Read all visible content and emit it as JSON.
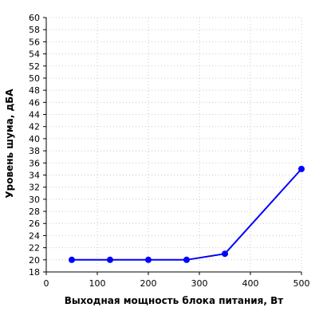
{
  "chart_data": {
    "type": "line",
    "xlabel": "Выходная мощность блока питания, Вт",
    "ylabel": "Уровень шума, дБА",
    "xlim": [
      0,
      500
    ],
    "ylim": [
      18,
      60
    ],
    "x_ticks": [
      0,
      100,
      200,
      300,
      400,
      500
    ],
    "y_ticks": [
      18,
      20,
      22,
      24,
      26,
      28,
      30,
      32,
      34,
      36,
      38,
      40,
      42,
      44,
      46,
      48,
      50,
      52,
      54,
      56,
      58,
      60
    ],
    "grid": true,
    "series": [
      {
        "color": "#0000ff",
        "points": [
          {
            "x": 50,
            "y": 20
          },
          {
            "x": 125,
            "y": 20
          },
          {
            "x": 200,
            "y": 20
          },
          {
            "x": 275,
            "y": 20
          },
          {
            "x": 350,
            "y": 21
          },
          {
            "x": 500,
            "y": 35
          }
        ]
      }
    ]
  }
}
